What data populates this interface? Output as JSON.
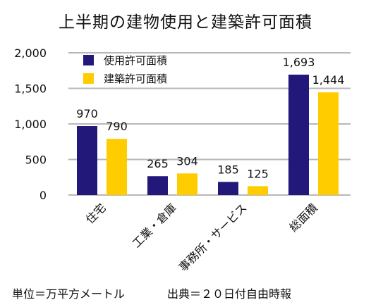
{
  "chart_data": {
    "type": "bar",
    "title": "上半期の建物使用と建築許可面積",
    "categories": [
      "住宅",
      "工業・倉庫",
      "事務所・サービス",
      "総面積"
    ],
    "series": [
      {
        "name": "使用許可面積",
        "values": [
          970,
          265,
          185,
          1693
        ],
        "labels": [
          "970",
          "265",
          "185",
          "1,693"
        ],
        "color": "#22187a"
      },
      {
        "name": "建築許可面積",
        "values": [
          790,
          304,
          125,
          1444
        ],
        "labels": [
          "790",
          "304",
          "125",
          "1,444"
        ],
        "color": "#ffcc00"
      }
    ],
    "yticks": [
      "0",
      "500",
      "1,000",
      "1,500",
      "2,000"
    ],
    "ylim": [
      0,
      2000
    ],
    "grid": true,
    "legend": "top-left",
    "xlabel": "",
    "ylabel": ""
  },
  "footnote": {
    "unit": "単位＝万平方メートル",
    "source": "出典＝２０日付自由時報"
  }
}
